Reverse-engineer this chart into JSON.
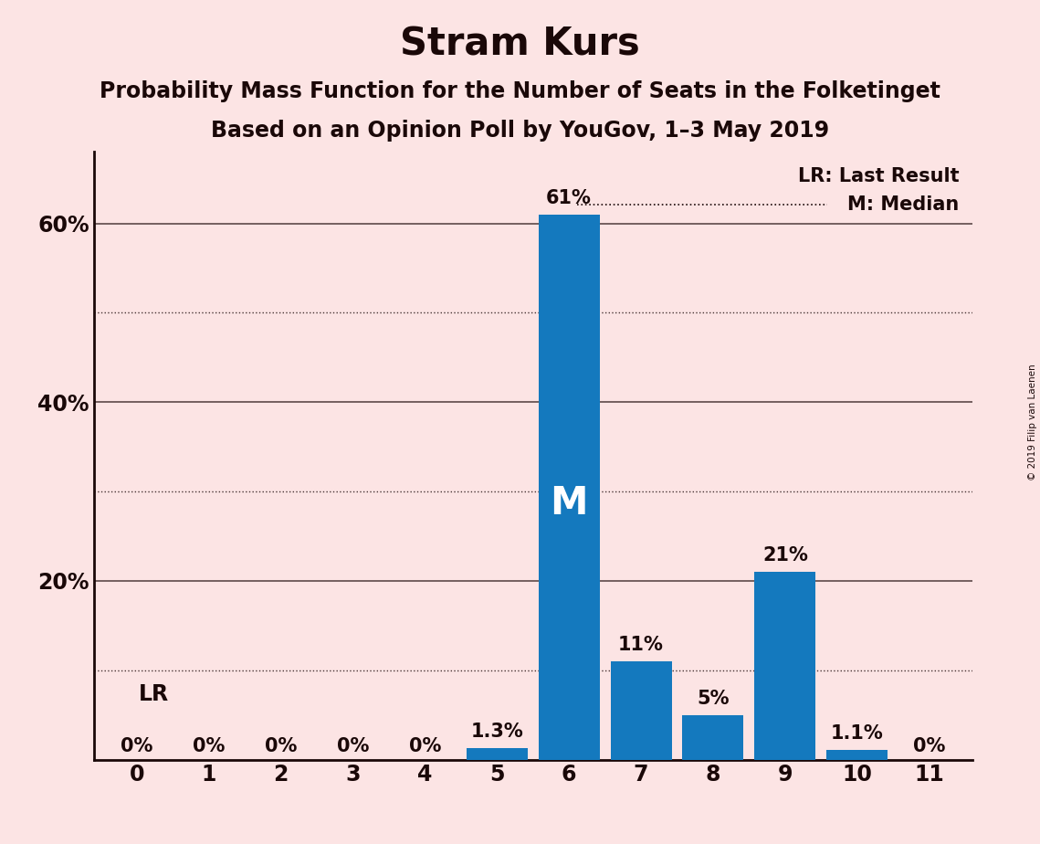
{
  "title": "Stram Kurs",
  "subtitle1": "Probability Mass Function for the Number of Seats in the Folketinget",
  "subtitle2": "Based on an Opinion Poll by YouGov, 1–3 May 2019",
  "watermark": "© 2019 Filip van Laenen",
  "categories": [
    0,
    1,
    2,
    3,
    4,
    5,
    6,
    7,
    8,
    9,
    10,
    11
  ],
  "values": [
    0.0,
    0.0,
    0.0,
    0.0,
    0.0,
    1.3,
    61.0,
    11.0,
    5.0,
    21.0,
    1.1,
    0.0
  ],
  "bar_color": "#1479be",
  "background_color": "#fce4e4",
  "text_color": "#1a0808",
  "ylim": [
    0,
    68
  ],
  "solid_gridlines": [
    20,
    40,
    60
  ],
  "dotted_gridlines": [
    10,
    30,
    50
  ],
  "ytick_positions": [
    20,
    40,
    60
  ],
  "ytick_labels": [
    "20%",
    "40%",
    "60%"
  ],
  "bar_labels": [
    "0%",
    "0%",
    "0%",
    "0%",
    "0%",
    "1.3%",
    "61%",
    "11%",
    "5%",
    "21%",
    "1.1%",
    "0%"
  ],
  "median_seat": 6,
  "lr_value": 0,
  "lr_label": "LR",
  "median_label": "M",
  "legend_lr": "LR: Last Result",
  "legend_m": "M: Median",
  "title_fontsize": 30,
  "subtitle_fontsize": 17,
  "bar_label_fontsize": 15,
  "axis_fontsize": 17,
  "median_fontsize": 30
}
